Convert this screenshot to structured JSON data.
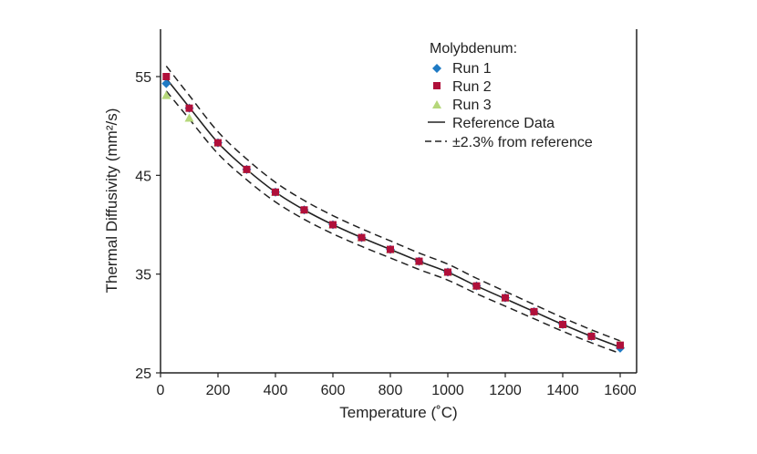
{
  "chart_data": {
    "type": "scatter",
    "title": "",
    "xlabel": "Temperature (˚C)",
    "ylabel": "Thermal Diffusivity (mm²/s)",
    "xlim": [
      0,
      1650
    ],
    "ylim": [
      25,
      60
    ],
    "x_ticks": [
      0,
      200,
      400,
      600,
      800,
      1000,
      1200,
      1400,
      1600
    ],
    "y_ticks": [
      25,
      35,
      45,
      55
    ],
    "x_tick_labels": [
      "0",
      "200",
      "400",
      "600",
      "800",
      "1000",
      "1200",
      "1400",
      "1600"
    ],
    "y_tick_labels": [
      "25",
      "35",
      "45",
      "55"
    ],
    "grid": false,
    "legend": {
      "position": "top-right",
      "title": "Molybdenum:",
      "entries": [
        "Run 1",
        "Run 2",
        "Run 3",
        "Reference Data",
        "±2.3% from reference"
      ]
    },
    "series": [
      {
        "name": "Run 1",
        "marker": "diamond",
        "color": "#1f7ac4",
        "x": [
          20,
          100,
          200,
          300,
          400,
          500,
          600,
          700,
          800,
          900,
          1000,
          1100,
          1200,
          1300,
          1400,
          1500,
          1600
        ],
        "y": [
          54.3,
          51.8,
          48.3,
          45.6,
          43.3,
          41.5,
          40.0,
          38.7,
          37.5,
          36.3,
          35.2,
          33.8,
          32.6,
          31.2,
          29.9,
          28.7,
          27.5
        ]
      },
      {
        "name": "Run 2",
        "marker": "square",
        "color": "#b0103a",
        "x": [
          20,
          100,
          200,
          300,
          400,
          500,
          600,
          700,
          800,
          900,
          1000,
          1100,
          1200,
          1300,
          1400,
          1500,
          1600
        ],
        "y": [
          55.0,
          51.8,
          48.3,
          45.6,
          43.3,
          41.5,
          40.0,
          38.7,
          37.5,
          36.3,
          35.2,
          33.8,
          32.6,
          31.2,
          29.9,
          28.7,
          27.8
        ]
      },
      {
        "name": "Run 3",
        "marker": "triangle",
        "color": "#b5d77a",
        "x": [
          20,
          100,
          200,
          300,
          400,
          500,
          600,
          700,
          800,
          900,
          1000,
          1100,
          1200,
          1300,
          1400,
          1500,
          1600
        ],
        "y": [
          53.1,
          50.8,
          48.3,
          45.6,
          43.3,
          41.5,
          40.0,
          38.7,
          37.5,
          36.3,
          35.2,
          33.8,
          32.6,
          31.2,
          29.9,
          28.9,
          27.9
        ]
      }
    ],
    "reference": {
      "name": "Reference Data",
      "x": [
        20,
        100,
        200,
        300,
        400,
        500,
        600,
        700,
        800,
        900,
        1000,
        1100,
        1200,
        1300,
        1400,
        1500,
        1600
      ],
      "y": [
        54.8,
        51.9,
        48.3,
        45.6,
        43.3,
        41.5,
        40.0,
        38.7,
        37.5,
        36.3,
        35.2,
        33.8,
        32.5,
        31.2,
        29.9,
        28.7,
        27.6
      ],
      "band_percent": 2.3,
      "band_name": "±2.3% from reference"
    }
  }
}
